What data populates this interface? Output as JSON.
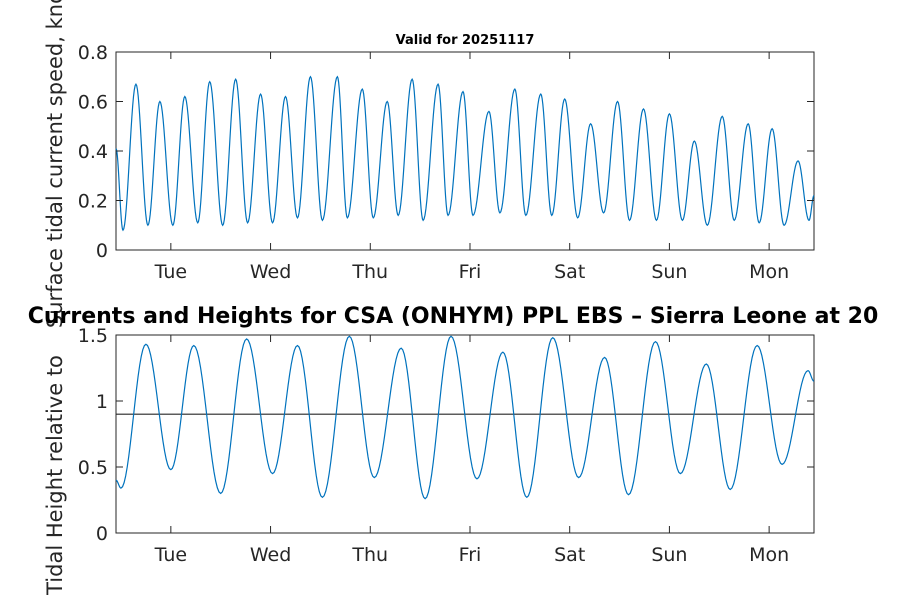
{
  "chart_data": [
    {
      "type": "line",
      "title": "Valid for 20251117",
      "ylabel": "Surface tidal current speed, knots",
      "xlabel": "",
      "ylim": [
        0,
        0.8
      ],
      "yticks": [
        0,
        0.2,
        0.4,
        0.6,
        0.8
      ],
      "ytick_labels": [
        "0",
        "0.2",
        "0.4",
        "0.6",
        "0.8"
      ],
      "xtick_labels": [
        "Tue",
        "Wed",
        "Thu",
        "Fri",
        "Sat",
        "Sun",
        "Mon"
      ],
      "x_range_days": [
        0,
        7
      ],
      "xtick_positions_days": [
        0.55,
        1.55,
        2.55,
        3.55,
        4.55,
        5.55,
        6.55
      ],
      "series": [
        {
          "name": "Current speed",
          "color": "#0072BD",
          "first_value": 0.41,
          "last_value": 0.22,
          "minima": [
            {
              "x": 0.07,
              "y": 0.08
            },
            {
              "x": 0.32,
              "y": 0.1
            },
            {
              "x": 0.57,
              "y": 0.1
            },
            {
              "x": 0.82,
              "y": 0.11
            },
            {
              "x": 1.07,
              "y": 0.1
            },
            {
              "x": 1.32,
              "y": 0.11
            },
            {
              "x": 1.57,
              "y": 0.11
            },
            {
              "x": 1.82,
              "y": 0.13
            },
            {
              "x": 2.07,
              "y": 0.12
            },
            {
              "x": 2.32,
              "y": 0.13
            },
            {
              "x": 2.58,
              "y": 0.13
            },
            {
              "x": 2.83,
              "y": 0.14
            },
            {
              "x": 3.08,
              "y": 0.12
            },
            {
              "x": 3.33,
              "y": 0.14
            },
            {
              "x": 3.58,
              "y": 0.14
            },
            {
              "x": 3.85,
              "y": 0.15
            },
            {
              "x": 4.11,
              "y": 0.14
            },
            {
              "x": 4.37,
              "y": 0.14
            },
            {
              "x": 4.63,
              "y": 0.13
            },
            {
              "x": 4.89,
              "y": 0.15
            },
            {
              "x": 5.15,
              "y": 0.12
            },
            {
              "x": 5.42,
              "y": 0.12
            },
            {
              "x": 5.68,
              "y": 0.12
            },
            {
              "x": 5.93,
              "y": 0.1
            },
            {
              "x": 6.2,
              "y": 0.12
            },
            {
              "x": 6.45,
              "y": 0.11
            },
            {
              "x": 6.7,
              "y": 0.1
            },
            {
              "x": 6.95,
              "y": 0.12
            }
          ],
          "maxima": [
            {
              "x": 0.2,
              "y": 0.67
            },
            {
              "x": 0.44,
              "y": 0.6
            },
            {
              "x": 0.69,
              "y": 0.62
            },
            {
              "x": 0.94,
              "y": 0.68
            },
            {
              "x": 1.2,
              "y": 0.69
            },
            {
              "x": 1.45,
              "y": 0.63
            },
            {
              "x": 1.7,
              "y": 0.62
            },
            {
              "x": 1.95,
              "y": 0.7
            },
            {
              "x": 2.22,
              "y": 0.7
            },
            {
              "x": 2.47,
              "y": 0.65
            },
            {
              "x": 2.72,
              "y": 0.6
            },
            {
              "x": 2.97,
              "y": 0.69
            },
            {
              "x": 3.23,
              "y": 0.67
            },
            {
              "x": 3.48,
              "y": 0.64
            },
            {
              "x": 3.74,
              "y": 0.56
            },
            {
              "x": 4.0,
              "y": 0.65
            },
            {
              "x": 4.26,
              "y": 0.63
            },
            {
              "x": 4.5,
              "y": 0.61
            },
            {
              "x": 4.76,
              "y": 0.51
            },
            {
              "x": 5.03,
              "y": 0.6
            },
            {
              "x": 5.29,
              "y": 0.57
            },
            {
              "x": 5.55,
              "y": 0.55
            },
            {
              "x": 5.8,
              "y": 0.44
            },
            {
              "x": 6.08,
              "y": 0.54
            },
            {
              "x": 6.34,
              "y": 0.51
            },
            {
              "x": 6.58,
              "y": 0.49
            },
            {
              "x": 6.84,
              "y": 0.36
            }
          ]
        }
      ]
    },
    {
      "type": "line",
      "title": "Currents and Heights for CSA (ONHYM) PPL EBS  – Sierra Leone at 20",
      "ylabel": "Tidal Height relative to",
      "xlabel": "",
      "ylim": [
        0,
        1.5
      ],
      "yticks": [
        0,
        0.5,
        1,
        1.5
      ],
      "ytick_labels": [
        "0",
        "0.5",
        "1",
        "1.5"
      ],
      "xtick_labels": [
        "Tue",
        "Wed",
        "Thu",
        "Fri",
        "Sat",
        "Sun",
        "Mon"
      ],
      "x_range_days": [
        0,
        7
      ],
      "xtick_positions_days": [
        0.55,
        1.55,
        2.55,
        3.55,
        4.55,
        5.55,
        6.55
      ],
      "reference_line": {
        "y": 0.9,
        "color": "#262626"
      },
      "series": [
        {
          "name": "Tidal height",
          "color": "#0072BD",
          "first_value": 0.4,
          "last_value": 1.15,
          "minima": [
            {
              "x": 0.05,
              "y": 0.34
            },
            {
              "x": 0.55,
              "y": 0.48
            },
            {
              "x": 1.05,
              "y": 0.3
            },
            {
              "x": 1.57,
              "y": 0.45
            },
            {
              "x": 2.07,
              "y": 0.27
            },
            {
              "x": 2.59,
              "y": 0.42
            },
            {
              "x": 3.1,
              "y": 0.26
            },
            {
              "x": 3.62,
              "y": 0.41
            },
            {
              "x": 4.12,
              "y": 0.27
            },
            {
              "x": 4.64,
              "y": 0.42
            },
            {
              "x": 5.14,
              "y": 0.29
            },
            {
              "x": 5.66,
              "y": 0.45
            },
            {
              "x": 6.16,
              "y": 0.33
            },
            {
              "x": 6.68,
              "y": 0.52
            }
          ],
          "maxima": [
            {
              "x": 0.3,
              "y": 1.43
            },
            {
              "x": 0.78,
              "y": 1.42
            },
            {
              "x": 1.31,
              "y": 1.47
            },
            {
              "x": 1.82,
              "y": 1.42
            },
            {
              "x": 2.34,
              "y": 1.49
            },
            {
              "x": 2.86,
              "y": 1.4
            },
            {
              "x": 3.36,
              "y": 1.49
            },
            {
              "x": 3.88,
              "y": 1.37
            },
            {
              "x": 4.38,
              "y": 1.48
            },
            {
              "x": 4.9,
              "y": 1.33
            },
            {
              "x": 5.41,
              "y": 1.45
            },
            {
              "x": 5.92,
              "y": 1.28
            },
            {
              "x": 6.43,
              "y": 1.42
            },
            {
              "x": 6.94,
              "y": 1.23
            }
          ]
        }
      ]
    }
  ]
}
